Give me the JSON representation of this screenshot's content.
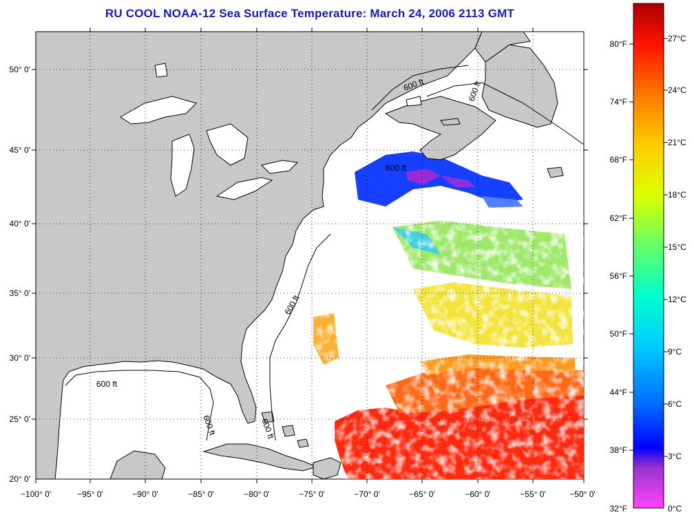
{
  "title": "RU COOL  NOAA-12  Sea Surface Temperature:  March 24, 2006 2113 GMT",
  "latitude_labels": [
    "50° 0'",
    "45° 0'",
    "40° 0'",
    "35° 0'",
    "30° 0'",
    "25° 0'",
    "20° 0'"
  ],
  "longitude_labels": [
    "−100° 0'",
    "−95° 0'",
    "−90° 0'",
    "−85° 0'",
    "−80° 0'",
    "−75° 0'",
    "−70° 0'",
    "−65° 0'",
    "−60° 0'",
    "−55° 0'",
    "−50° 0'"
  ],
  "contour_labels": [
    "600 ft",
    "600 ft",
    "600 ft",
    "600 ft",
    "600 ft",
    "600 ft",
    "600 ft"
  ],
  "colorbar": {
    "fahrenheit_labels": [
      "80°F",
      "74°F",
      "68°F",
      "62°F",
      "56°F",
      "50°F",
      "44°F",
      "38°F",
      "32°F"
    ],
    "celsius_labels": [
      "27°C",
      "24°C",
      "21°C",
      "18°C",
      "15°C",
      "12°C",
      "9°C",
      "6°C",
      "3°C",
      "0°C"
    ]
  },
  "colors": {
    "land": "#c8c8c8",
    "title": "#1a1aa8",
    "ocean_no_data": "#ffffff"
  }
}
